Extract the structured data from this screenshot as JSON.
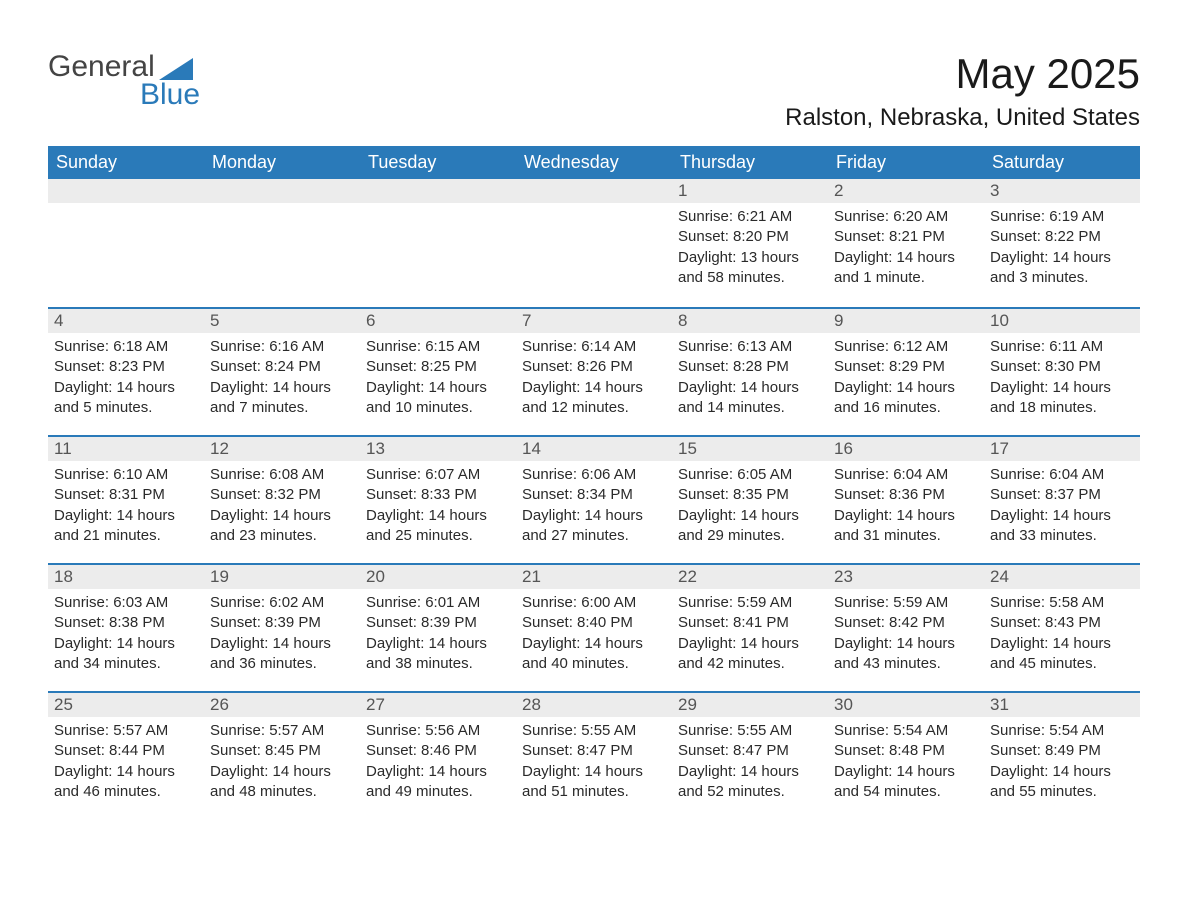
{
  "brand": {
    "part1": "General",
    "part2": "Blue"
  },
  "title": "May 2025",
  "location": "Ralston, Nebraska, United States",
  "columns": [
    "Sunday",
    "Monday",
    "Tuesday",
    "Wednesday",
    "Thursday",
    "Friday",
    "Saturday"
  ],
  "labels": {
    "sunrise": "Sunrise:",
    "sunset": "Sunset:",
    "daylight": "Daylight:"
  },
  "colors": {
    "header_bg": "#2a7ab9",
    "header_text": "#ffffff",
    "daynum_bg": "#ececec",
    "row_divider": "#2a7ab9",
    "body_text": "#2a2a2a",
    "background": "#ffffff"
  },
  "weeks": [
    [
      {
        "empty": true
      },
      {
        "empty": true
      },
      {
        "empty": true
      },
      {
        "empty": true
      },
      {
        "day": "1",
        "sunrise": "6:21 AM",
        "sunset": "8:20 PM",
        "daylight": "13 hours and 58 minutes."
      },
      {
        "day": "2",
        "sunrise": "6:20 AM",
        "sunset": "8:21 PM",
        "daylight": "14 hours and 1 minute."
      },
      {
        "day": "3",
        "sunrise": "6:19 AM",
        "sunset": "8:22 PM",
        "daylight": "14 hours and 3 minutes."
      }
    ],
    [
      {
        "day": "4",
        "sunrise": "6:18 AM",
        "sunset": "8:23 PM",
        "daylight": "14 hours and 5 minutes."
      },
      {
        "day": "5",
        "sunrise": "6:16 AM",
        "sunset": "8:24 PM",
        "daylight": "14 hours and 7 minutes."
      },
      {
        "day": "6",
        "sunrise": "6:15 AM",
        "sunset": "8:25 PM",
        "daylight": "14 hours and 10 minutes."
      },
      {
        "day": "7",
        "sunrise": "6:14 AM",
        "sunset": "8:26 PM",
        "daylight": "14 hours and 12 minutes."
      },
      {
        "day": "8",
        "sunrise": "6:13 AM",
        "sunset": "8:28 PM",
        "daylight": "14 hours and 14 minutes."
      },
      {
        "day": "9",
        "sunrise": "6:12 AM",
        "sunset": "8:29 PM",
        "daylight": "14 hours and 16 minutes."
      },
      {
        "day": "10",
        "sunrise": "6:11 AM",
        "sunset": "8:30 PM",
        "daylight": "14 hours and 18 minutes."
      }
    ],
    [
      {
        "day": "11",
        "sunrise": "6:10 AM",
        "sunset": "8:31 PM",
        "daylight": "14 hours and 21 minutes."
      },
      {
        "day": "12",
        "sunrise": "6:08 AM",
        "sunset": "8:32 PM",
        "daylight": "14 hours and 23 minutes."
      },
      {
        "day": "13",
        "sunrise": "6:07 AM",
        "sunset": "8:33 PM",
        "daylight": "14 hours and 25 minutes."
      },
      {
        "day": "14",
        "sunrise": "6:06 AM",
        "sunset": "8:34 PM",
        "daylight": "14 hours and 27 minutes."
      },
      {
        "day": "15",
        "sunrise": "6:05 AM",
        "sunset": "8:35 PM",
        "daylight": "14 hours and 29 minutes."
      },
      {
        "day": "16",
        "sunrise": "6:04 AM",
        "sunset": "8:36 PM",
        "daylight": "14 hours and 31 minutes."
      },
      {
        "day": "17",
        "sunrise": "6:04 AM",
        "sunset": "8:37 PM",
        "daylight": "14 hours and 33 minutes."
      }
    ],
    [
      {
        "day": "18",
        "sunrise": "6:03 AM",
        "sunset": "8:38 PM",
        "daylight": "14 hours and 34 minutes."
      },
      {
        "day": "19",
        "sunrise": "6:02 AM",
        "sunset": "8:39 PM",
        "daylight": "14 hours and 36 minutes."
      },
      {
        "day": "20",
        "sunrise": "6:01 AM",
        "sunset": "8:39 PM",
        "daylight": "14 hours and 38 minutes."
      },
      {
        "day": "21",
        "sunrise": "6:00 AM",
        "sunset": "8:40 PM",
        "daylight": "14 hours and 40 minutes."
      },
      {
        "day": "22",
        "sunrise": "5:59 AM",
        "sunset": "8:41 PM",
        "daylight": "14 hours and 42 minutes."
      },
      {
        "day": "23",
        "sunrise": "5:59 AM",
        "sunset": "8:42 PM",
        "daylight": "14 hours and 43 minutes."
      },
      {
        "day": "24",
        "sunrise": "5:58 AM",
        "sunset": "8:43 PM",
        "daylight": "14 hours and 45 minutes."
      }
    ],
    [
      {
        "day": "25",
        "sunrise": "5:57 AM",
        "sunset": "8:44 PM",
        "daylight": "14 hours and 46 minutes."
      },
      {
        "day": "26",
        "sunrise": "5:57 AM",
        "sunset": "8:45 PM",
        "daylight": "14 hours and 48 minutes."
      },
      {
        "day": "27",
        "sunrise": "5:56 AM",
        "sunset": "8:46 PM",
        "daylight": "14 hours and 49 minutes."
      },
      {
        "day": "28",
        "sunrise": "5:55 AM",
        "sunset": "8:47 PM",
        "daylight": "14 hours and 51 minutes."
      },
      {
        "day": "29",
        "sunrise": "5:55 AM",
        "sunset": "8:47 PM",
        "daylight": "14 hours and 52 minutes."
      },
      {
        "day": "30",
        "sunrise": "5:54 AM",
        "sunset": "8:48 PM",
        "daylight": "14 hours and 54 minutes."
      },
      {
        "day": "31",
        "sunrise": "5:54 AM",
        "sunset": "8:49 PM",
        "daylight": "14 hours and 55 minutes."
      }
    ]
  ]
}
